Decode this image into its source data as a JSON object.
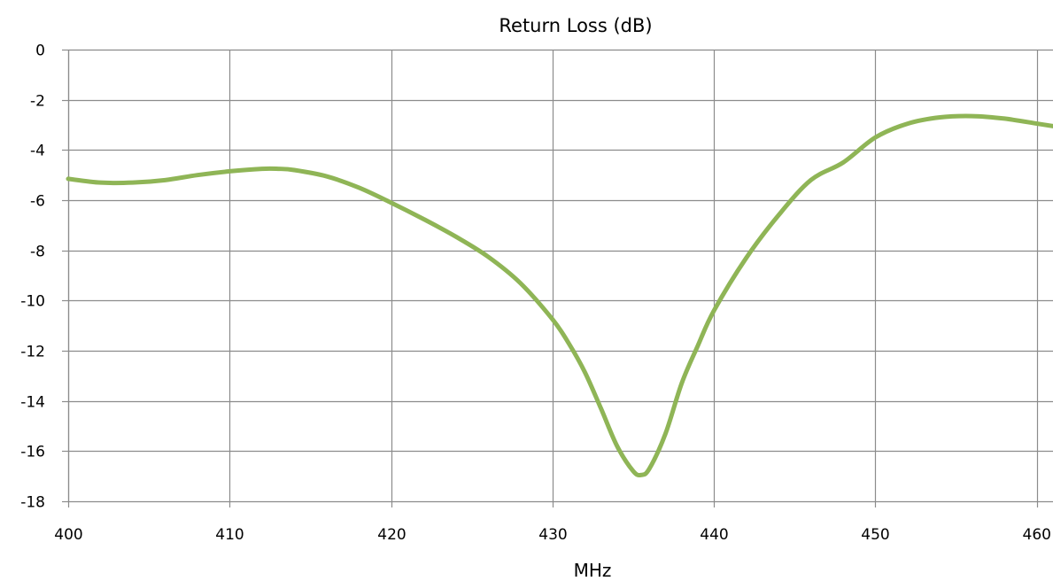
{
  "chart_data": {
    "type": "line",
    "title": "Return Loss (dB)",
    "xlabel": "MHz",
    "ylabel": "",
    "xlim": [
      400,
      461
    ],
    "ylim": [
      -18,
      0
    ],
    "x_ticks": [
      400,
      410,
      420,
      430,
      440,
      450,
      460
    ],
    "y_ticks": [
      0,
      -2,
      -4,
      -6,
      -8,
      -10,
      -12,
      -14,
      -16,
      -18
    ],
    "grid": true,
    "legend": "none",
    "series": [
      {
        "color": "#8fb556",
        "x": [
          400,
          402,
          404,
          406,
          408,
          410,
          412,
          413,
          414,
          416,
          418,
          420,
          422,
          424,
          426,
          428,
          430,
          431,
          432,
          433,
          434,
          435,
          435.5,
          436,
          437,
          438,
          439,
          440,
          442,
          444,
          446,
          448,
          450,
          452,
          454,
          456,
          458,
          460,
          461
        ],
        "y": [
          -5.15,
          -5.3,
          -5.3,
          -5.2,
          -5.0,
          -4.85,
          -4.75,
          -4.75,
          -4.8,
          -5.05,
          -5.5,
          -6.1,
          -6.75,
          -7.45,
          -8.25,
          -9.3,
          -10.75,
          -11.7,
          -12.85,
          -14.3,
          -15.8,
          -16.8,
          -16.95,
          -16.7,
          -15.3,
          -13.3,
          -11.8,
          -10.4,
          -8.3,
          -6.6,
          -5.2,
          -4.5,
          -3.5,
          -2.95,
          -2.7,
          -2.65,
          -2.75,
          -2.95,
          -3.05
        ]
      }
    ]
  }
}
